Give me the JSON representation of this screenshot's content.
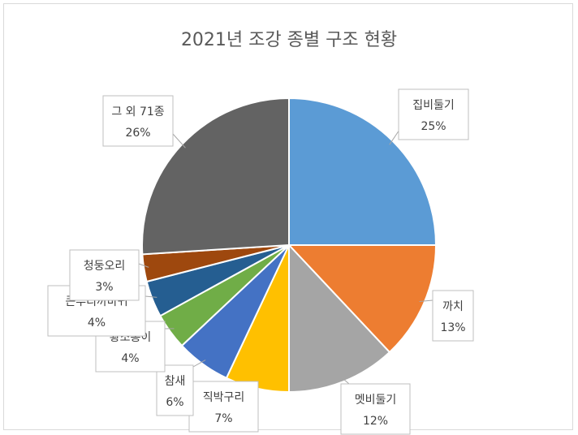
{
  "chart_data": {
    "type": "pie",
    "title": "2021년 조강 종별 구조 현황",
    "start_angle_deg": 0,
    "direction": "clockwise",
    "slices": [
      {
        "label": "집비둘기",
        "value": 25,
        "pct_label": "25%",
        "color": "#5b9bd5"
      },
      {
        "label": "까치",
        "value": 13,
        "pct_label": "13%",
        "color": "#ed7d31"
      },
      {
        "label": "멧비둘기",
        "value": 12,
        "pct_label": "12%",
        "color": "#a5a5a5"
      },
      {
        "label": "직박구리",
        "value": 7,
        "pct_label": "7%",
        "color": "#ffc000"
      },
      {
        "label": "참새",
        "value": 6,
        "pct_label": "6%",
        "color": "#4472c4"
      },
      {
        "label": "황조롱이",
        "value": 4,
        "pct_label": "4%",
        "color": "#70ad47"
      },
      {
        "label": "큰부리까마귀",
        "value": 4,
        "pct_label": "4%",
        "color": "#255e91"
      },
      {
        "label": "청둥오리",
        "value": 3,
        "pct_label": "3%",
        "color": "#9e480e"
      },
      {
        "label": "그 외 71종",
        "value": 26,
        "pct_label": "26%",
        "color": "#636363"
      }
    ]
  }
}
